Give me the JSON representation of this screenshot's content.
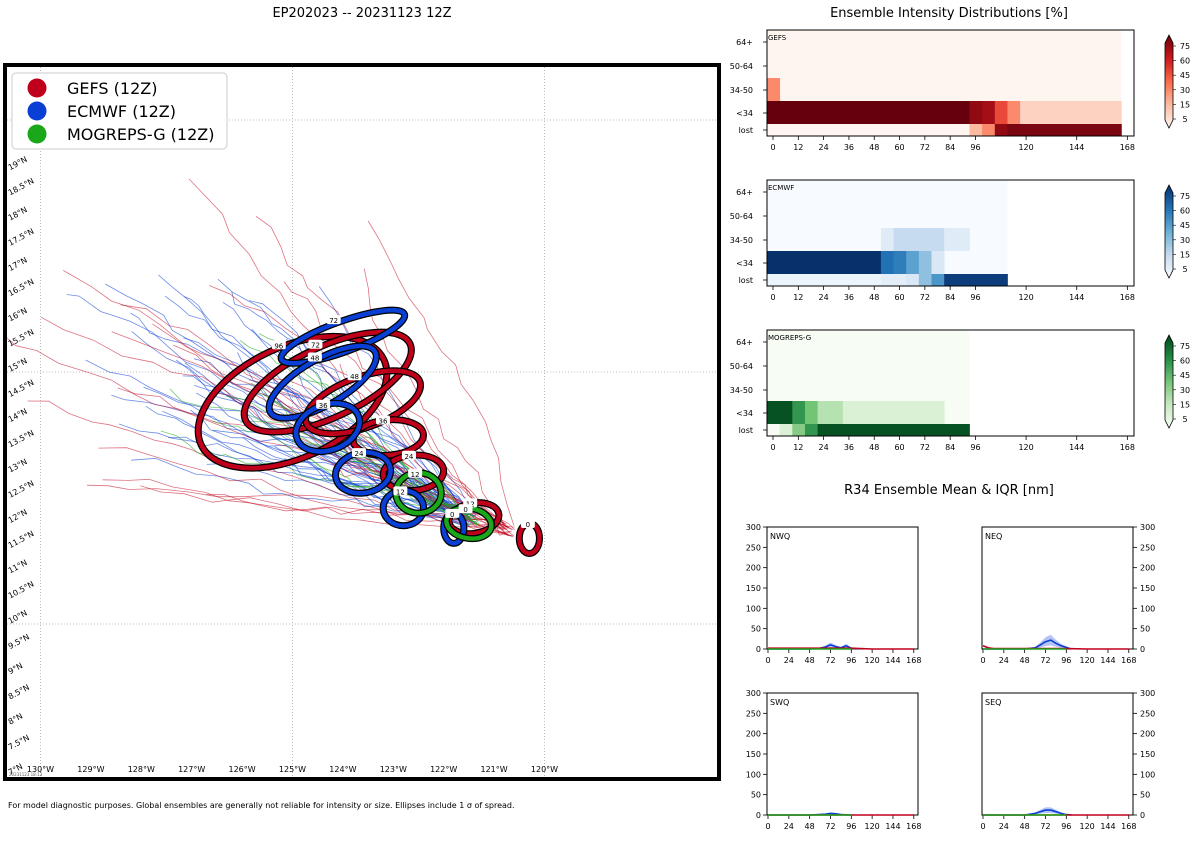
{
  "page": {
    "title": "EP202023 -- 20231123 12Z",
    "footnote": "For model diagnostic purposes. Global ensembles are generally not reliable for intensity or size. Ellipses include 1 σ of spread.",
    "stamp": "20231123 18:13"
  },
  "colors": {
    "gefs": "#c0001a",
    "ecmwf": "#0a3fd6",
    "mogreps": "#1aa81a"
  },
  "chart_data": [
    {
      "type": "map",
      "legend": [
        {
          "name": "GEFS (12Z)",
          "color": "#c0001a"
        },
        {
          "name": "ECMWF (12Z)",
          "color": "#0a3fd6"
        },
        {
          "name": "MOGREPS-G (12Z)",
          "color": "#1aa81a"
        }
      ],
      "legend_position": "top-left",
      "lon_range": [
        -130.3,
        -116.5
      ],
      "lat_range": [
        7.0,
        20.8
      ],
      "lon_ticks": [
        "130°W",
        "129°W",
        "128°W",
        "127°W",
        "126°W",
        "125°W",
        "124°W",
        "123°W",
        "122°W",
        "121°W",
        "120°W"
      ],
      "lat_ticks": [
        "7°N",
        "7.5°N",
        "8°N",
        "8.5°N",
        "9°N",
        "9.5°N",
        "10°N",
        "10.5°N",
        "11°N",
        "11.5°N",
        "12°N",
        "12.5°N",
        "13°N",
        "13.5°N",
        "14°N",
        "14.5°N",
        "15°N",
        "15.5°N",
        "16°N",
        "16.5°N",
        "17°N",
        "17.5°N",
        "18°N",
        "18.5°N",
        "19°N"
      ],
      "ellipses": {
        "GEFS": [
          {
            "hour": "0",
            "lon": -120.3,
            "lat": 11.7,
            "rx": 0.2,
            "ry": 0.3,
            "angle": 0
          },
          {
            "hour": "12",
            "lon": -121.4,
            "lat": 12.1,
            "rx": 0.5,
            "ry": 0.3,
            "angle": -10
          },
          {
            "hour": "24",
            "lon": -122.6,
            "lat": 13.0,
            "rx": 0.6,
            "ry": 0.35,
            "angle": -5
          },
          {
            "hour": "36",
            "lon": -123.1,
            "lat": 13.7,
            "rx": 0.7,
            "ry": 0.35,
            "angle": -5
          },
          {
            "hour": "48",
            "lon": -123.6,
            "lat": 14.4,
            "rx": 1.2,
            "ry": 0.5,
            "angle": -20
          },
          {
            "hour": "72",
            "lon": -124.3,
            "lat": 14.8,
            "rx": 1.8,
            "ry": 0.7,
            "angle": -25
          },
          {
            "hour": "96",
            "lon": -125.0,
            "lat": 14.4,
            "rx": 2.0,
            "ry": 1.1,
            "angle": -25
          }
        ],
        "ECMWF": [
          {
            "hour": "0",
            "lon": -121.8,
            "lat": 11.9,
            "rx": 0.2,
            "ry": 0.3,
            "angle": 0
          },
          {
            "hour": "12",
            "lon": -122.8,
            "lat": 12.3,
            "rx": 0.4,
            "ry": 0.35,
            "angle": 0
          },
          {
            "hour": "24",
            "lon": -123.6,
            "lat": 13.0,
            "rx": 0.55,
            "ry": 0.4,
            "angle": -10
          },
          {
            "hour": "36",
            "lon": -124.3,
            "lat": 13.9,
            "rx": 0.65,
            "ry": 0.45,
            "angle": -20
          },
          {
            "hour": "48",
            "lon": -124.4,
            "lat": 14.8,
            "rx": 1.2,
            "ry": 0.45,
            "angle": -30
          },
          {
            "hour": "72",
            "lon": -124.0,
            "lat": 15.7,
            "rx": 1.3,
            "ry": 0.3,
            "angle": -20
          }
        ],
        "MOGREPS-G": [
          {
            "hour": "0",
            "lon": -121.5,
            "lat": 12.0,
            "rx": 0.45,
            "ry": 0.3,
            "angle": 10
          },
          {
            "hour": "12",
            "lon": -122.5,
            "lat": 12.6,
            "rx": 0.45,
            "ry": 0.4,
            "angle": 0
          }
        ]
      },
      "hour_labels": [
        "0",
        "12",
        "24",
        "36",
        "48",
        "72",
        "96"
      ]
    },
    {
      "type": "heatmap",
      "title": "Ensemble Intensity Distributions [%]",
      "panels": [
        {
          "name": "GEFS",
          "colormap": "Reds",
          "max_hour": 168,
          "rows": [
            "64+",
            "50-64",
            "34-50",
            "<34",
            "lost"
          ],
          "cells": {
            "lost": [
              [
                0,
                96,
                0
              ],
              [
                96,
                102,
                25
              ],
              [
                102,
                108,
                40
              ],
              [
                108,
                114,
                90
              ],
              [
                114,
                168,
                95
              ]
            ],
            "<34": [
              [
                0,
                96,
                100
              ],
              [
                96,
                102,
                90
              ],
              [
                102,
                108,
                85
              ],
              [
                108,
                114,
                60
              ],
              [
                114,
                120,
                40
              ],
              [
                120,
                168,
                15
              ]
            ],
            "34-50": [
              [
                0,
                6,
                40
              ]
            ],
            "50-64": [],
            "64+": []
          }
        },
        {
          "name": "ECMWF",
          "colormap": "Blues",
          "max_hour": 114,
          "rows": [
            "64+",
            "50-64",
            "34-50",
            "<34",
            "lost"
          ],
          "cells": {
            "lost": [
              [
                0,
                54,
                5
              ],
              [
                54,
                66,
                10
              ],
              [
                66,
                72,
                15
              ],
              [
                72,
                78,
                40
              ],
              [
                78,
                84,
                60
              ],
              [
                84,
                114,
                95
              ]
            ],
            "<34": [
              [
                0,
                54,
                100
              ],
              [
                54,
                60,
                75
              ],
              [
                60,
                66,
                70
              ],
              [
                66,
                72,
                55
              ],
              [
                72,
                78,
                40
              ],
              [
                78,
                84,
                15
              ]
            ],
            "34-50": [
              [
                54,
                60,
                12
              ],
              [
                60,
                84,
                25
              ],
              [
                84,
                96,
                12
              ]
            ],
            "50-64": [],
            "64+": []
          }
        },
        {
          "name": "MOGREPS-G",
          "colormap": "Greens",
          "max_hour": 96,
          "rows": [
            "64+",
            "50-64",
            "34-50",
            "<34",
            "lost"
          ],
          "cells": {
            "lost": [
              [
                6,
                12,
                15
              ],
              [
                12,
                18,
                45
              ],
              [
                18,
                24,
                70
              ],
              [
                24,
                96,
                95
              ]
            ],
            "<34": [
              [
                0,
                12,
                95
              ],
              [
                12,
                18,
                70
              ],
              [
                18,
                24,
                50
              ],
              [
                24,
                36,
                30
              ],
              [
                36,
                84,
                15
              ]
            ],
            "34-50": [],
            "50-64": [],
            "64+": []
          }
        }
      ],
      "x_ticks": [
        "0",
        "12",
        "24",
        "36",
        "48",
        "60",
        "72",
        "84",
        "96",
        "120",
        "144",
        "168"
      ],
      "colorbar_ticks": [
        "75",
        "60",
        "45",
        "30",
        "15",
        "5"
      ]
    },
    {
      "type": "line",
      "title": "R34 Ensemble Mean & IQR [nm]",
      "ylim": [
        0,
        300
      ],
      "y_ticks": [
        "0",
        "50",
        "100",
        "150",
        "200",
        "250",
        "300"
      ],
      "x_ticks": [
        "0",
        "24",
        "48",
        "72",
        "96",
        "120",
        "144",
        "168"
      ],
      "panels": [
        {
          "name": "NWQ",
          "series": [
            {
              "name": "ECMWF",
              "x": [
                0,
                24,
                48,
                60,
                66,
                72,
                78,
                84,
                90,
                96,
                102
              ],
              "y": [
                0,
                0,
                0,
                2,
                5,
                10,
                6,
                3,
                8,
                2,
                0
              ]
            },
            {
              "name": "GEFS",
              "x": [
                0,
                96,
                120,
                144,
                168
              ],
              "y": [
                2,
                2,
                0,
                0,
                0
              ]
            }
          ]
        },
        {
          "name": "NEQ",
          "series": [
            {
              "name": "ECMWF",
              "x": [
                0,
                24,
                48,
                60,
                66,
                72,
                78,
                84,
                90,
                96,
                102
              ],
              "y": [
                0,
                0,
                0,
                3,
                10,
                18,
                22,
                14,
                8,
                4,
                0
              ]
            },
            {
              "name": "GEFS",
              "x": [
                0,
                6,
                12,
                96,
                120,
                144,
                168
              ],
              "y": [
                8,
                3,
                1,
                1,
                0,
                0,
                0
              ]
            }
          ]
        },
        {
          "name": "SWQ",
          "series": [
            {
              "name": "ECMWF",
              "x": [
                0,
                48,
                66,
                72,
                78,
                84,
                96
              ],
              "y": [
                0,
                0,
                2,
                4,
                3,
                1,
                0
              ]
            },
            {
              "name": "GEFS",
              "x": [
                0,
                96,
                120,
                144,
                168
              ],
              "y": [
                0,
                0,
                0,
                0,
                0
              ]
            }
          ]
        },
        {
          "name": "SEQ",
          "series": [
            {
              "name": "ECMWF",
              "x": [
                0,
                24,
                48,
                60,
                66,
                72,
                78,
                84,
                90,
                96,
                102
              ],
              "y": [
                0,
                0,
                0,
                4,
                8,
                12,
                12,
                8,
                4,
                1,
                0
              ]
            },
            {
              "name": "GEFS",
              "x": [
                0,
                96,
                120,
                144,
                168
              ],
              "y": [
                0,
                0,
                0,
                0,
                0
              ]
            }
          ]
        }
      ]
    }
  ]
}
